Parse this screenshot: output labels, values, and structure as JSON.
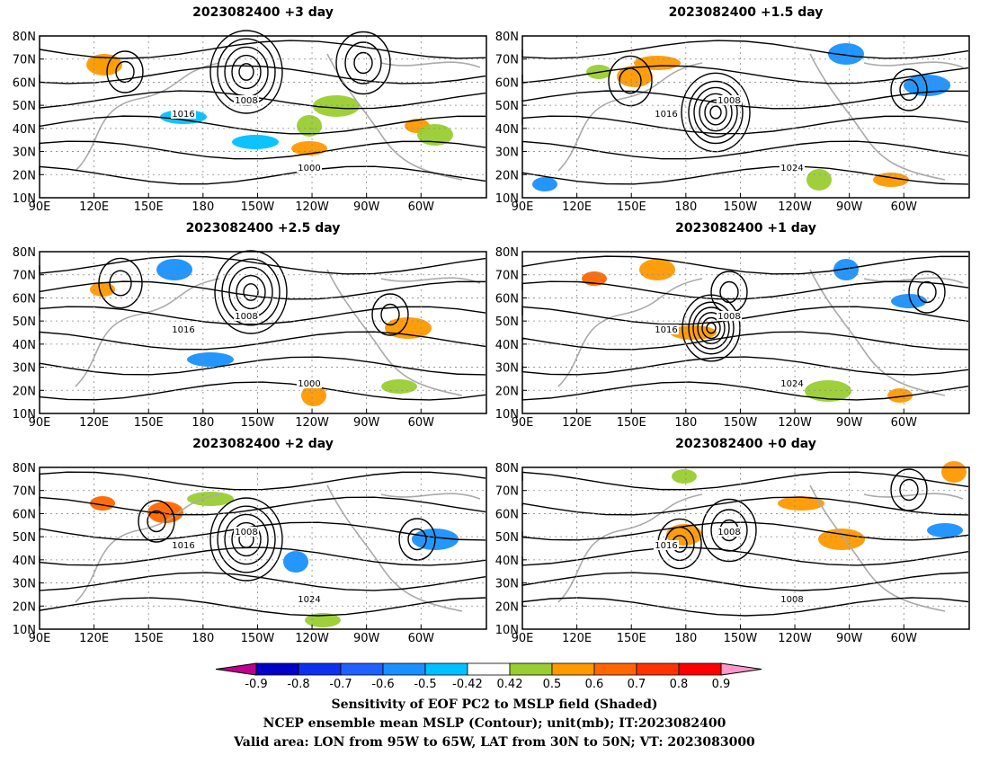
{
  "panels": [
    {
      "title": "2023082400  +3 day",
      "high_label": "1016",
      "low_label": "1008",
      "extra_label": "1000"
    },
    {
      "title": "2023082400  +1.5 day",
      "high_label": "1016",
      "low_label": "1008",
      "extra_label": "1024"
    },
    {
      "title": "2023082400  +2.5 day",
      "high_label": "1016",
      "low_label": "1008",
      "extra_label": "1000"
    },
    {
      "title": "2023082400  +1 day",
      "high_label": "1016",
      "low_label": "1008",
      "extra_label": "1024"
    },
    {
      "title": "2023082400  +2 day",
      "high_label": "1016",
      "low_label": "1008",
      "extra_label": "1024"
    },
    {
      "title": "2023082400  +0 day",
      "high_label": "1016",
      "low_label": "1008",
      "extra_label": "1008"
    }
  ],
  "axes": {
    "lat_labels": [
      "80N",
      "70N",
      "60N",
      "50N",
      "40N",
      "30N",
      "20N",
      "10N"
    ],
    "lon_labels": [
      "90E",
      "120E",
      "150E",
      "180",
      "150W",
      "120W",
      "90W",
      "60W"
    ]
  },
  "colorbar": {
    "ticks": [
      "-0.9",
      "-0.8",
      "-0.7",
      "-0.6",
      "-0.5",
      "-0.42",
      "0.42",
      "0.5",
      "0.6",
      "0.7",
      "0.8",
      "0.9"
    ],
    "colors": [
      "#c0008c",
      "#0000c8",
      "#1030f0",
      "#2060ff",
      "#1890ff",
      "#00c0ff",
      "#ffffff",
      "#9acd32",
      "#ff9900",
      "#ff6600",
      "#ff3300",
      "#ff0000",
      "#ff99cc"
    ]
  },
  "caption": {
    "line1": "Sensitivity of EOF PC2 to MSLP field (Shaded)",
    "line2": "NCEP ensemble mean MSLP (Contour); unit(mb); IT:2023082400",
    "line3": "Valid area: LON from 95W to 65W, LAT from 30N to 50N; VT: 2023083000"
  }
}
